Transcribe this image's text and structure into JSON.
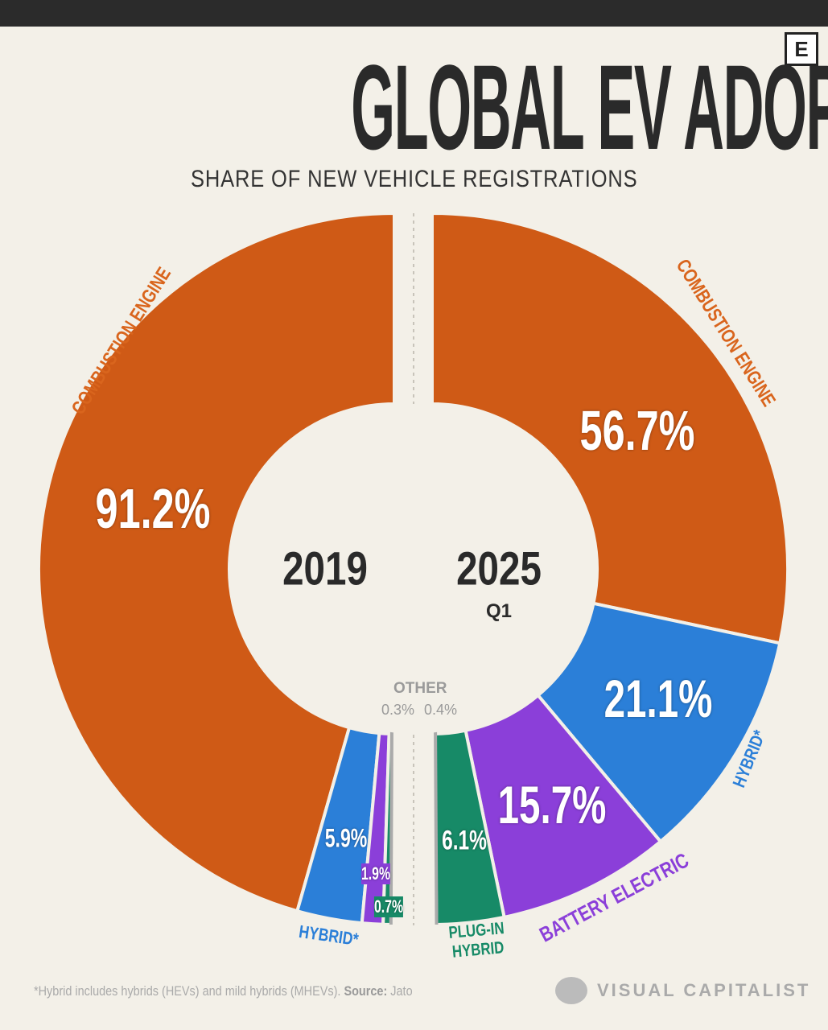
{
  "header": {
    "title": "GLOBAL EV ADOPTION",
    "subtitle": "SHARE OF NEW VEHICLE REGISTRATIONS",
    "logo": "E"
  },
  "chart_data": [
    {
      "type": "pie",
      "variant": "half-donut",
      "year": "2019",
      "period": "",
      "categories": [
        "Combustion Engine",
        "Hybrid*",
        "Battery Electric",
        "Plug-in Hybrid",
        "Other"
      ],
      "values": [
        91.2,
        5.9,
        1.9,
        0.7,
        0.3
      ],
      "labels": [
        "91.2%",
        "5.9%",
        "1.9%",
        "0.7%",
        "0.3%"
      ]
    },
    {
      "type": "pie",
      "variant": "half-donut",
      "year": "2025",
      "period": "Q1",
      "categories": [
        "Combustion Engine",
        "Hybrid*",
        "Battery Electric",
        "Plug-in Hybrid",
        "Other"
      ],
      "values": [
        56.7,
        21.1,
        15.7,
        6.1,
        0.4
      ],
      "labels": [
        "56.7%",
        "21.1%",
        "15.7%",
        "6.1%",
        "0.4%"
      ]
    }
  ],
  "category_labels": {
    "combustion": "COMBUSTION ENGINE",
    "hybrid": "HYBRID*",
    "battery": "BATTERY ELECTRIC",
    "plugin_1": "PLUG-IN",
    "plugin_2": "HYBRID",
    "other": "OTHER"
  },
  "colors": {
    "combustion": "#cf5a16",
    "hybrid": "#2b7fd8",
    "battery": "#8b3fd9",
    "plugin": "#178a67",
    "other": "#aaaaaa",
    "background": "#f3f0e8"
  },
  "footer": {
    "note": "*Hybrid includes hybrids (HEVs) and mild hybrids (MHEVs).",
    "source_label": "Source:",
    "source": "Jato",
    "brand": "VISUAL CAPITALIST"
  }
}
